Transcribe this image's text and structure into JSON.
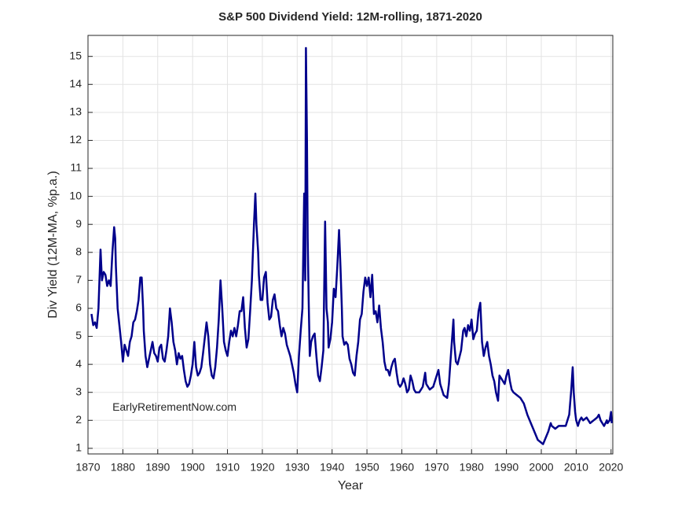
{
  "chart_data": {
    "type": "line",
    "title": "S&P 500 Dividend Yield: 12M-rolling, 1871-2020",
    "x_label": "Year",
    "y_label": "Div Yield (12M-MA, %p.a.)",
    "annotation": "EarlyRetirementNow.com",
    "color": "#00008b",
    "grid": true,
    "xlim": [
      1870,
      2020.5
    ],
    "ylim": [
      0.8,
      15.75
    ],
    "xticks": [
      1870,
      1880,
      1890,
      1900,
      1910,
      1920,
      1930,
      1940,
      1950,
      1960,
      1970,
      1980,
      1990,
      2000,
      2010,
      2020
    ],
    "yticks": [
      1,
      2,
      3,
      4,
      5,
      6,
      7,
      8,
      9,
      10,
      11,
      12,
      13,
      14,
      15
    ],
    "x": [
      1871,
      1871.5,
      1872,
      1872.5,
      1873,
      1873.6,
      1874,
      1874.5,
      1875,
      1875.5,
      1876,
      1876.5,
      1877,
      1877.5,
      1877.8,
      1878,
      1878.5,
      1879,
      1879.5,
      1880,
      1880.5,
      1881,
      1881.5,
      1882,
      1882.5,
      1883,
      1883.5,
      1884,
      1884.5,
      1885,
      1885.4,
      1885.8,
      1886,
      1886.5,
      1887,
      1887.5,
      1888,
      1888.5,
      1889,
      1889.5,
      1890,
      1890.5,
      1891,
      1891.5,
      1892,
      1892.5,
      1893,
      1893.5,
      1894,
      1894.5,
      1895,
      1895.5,
      1896,
      1896.5,
      1897,
      1897.5,
      1898,
      1898.5,
      1899,
      1899.5,
      1900,
      1900.5,
      1901,
      1901.5,
      1902,
      1902.5,
      1903,
      1904,
      1904.5,
      1905,
      1905.5,
      1906,
      1906.5,
      1907,
      1907.5,
      1908,
      1908.5,
      1909,
      1909.5,
      1910,
      1910.5,
      1911,
      1911.5,
      1912,
      1912.5,
      1913,
      1913.5,
      1914,
      1914.5,
      1915,
      1915.5,
      1916,
      1916.5,
      1917,
      1917.6,
      1918,
      1918.3,
      1918.8,
      1919,
      1919.5,
      1920,
      1920.5,
      1921,
      1921.5,
      1922,
      1922.5,
      1923,
      1923.5,
      1924,
      1924.5,
      1925,
      1925.5,
      1926,
      1926.5,
      1927,
      1928,
      1928.5,
      1929,
      1929.5,
      1930,
      1930.5,
      1931,
      1931.5,
      1932,
      1932.3,
      1932.5,
      1932.8,
      1933,
      1933.3,
      1933.6,
      1934,
      1934.5,
      1935,
      1935.5,
      1936,
      1936.5,
      1937,
      1937.5,
      1938,
      1938.4,
      1938.8,
      1939,
      1939.5,
      1940,
      1940.5,
      1941,
      1941.5,
      1942,
      1942.4,
      1942.8,
      1943,
      1943.5,
      1944,
      1944.5,
      1945,
      1945.5,
      1946,
      1946.5,
      1947,
      1947.5,
      1948,
      1948.5,
      1949,
      1949.5,
      1950,
      1950.5,
      1951,
      1951.5,
      1952,
      1952.5,
      1953,
      1953.5,
      1954,
      1954.5,
      1955,
      1955.5,
      1956,
      1956.5,
      1957,
      1957.5,
      1958,
      1958.5,
      1959,
      1959.5,
      1960,
      1960.5,
      1961,
      1961.5,
      1962,
      1962.5,
      1963,
      1963.5,
      1964,
      1965,
      1966,
      1966.7,
      1967,
      1968,
      1969,
      1970,
      1970.5,
      1971,
      1972,
      1973,
      1973.5,
      1974,
      1974.8,
      1975,
      1975.5,
      1976,
      1977,
      1977.6,
      1978,
      1978.5,
      1979,
      1979.5,
      1980,
      1980.5,
      1981,
      1981.5,
      1982,
      1982.5,
      1983,
      1983.5,
      1984,
      1984.5,
      1985,
      1985.5,
      1986,
      1986.5,
      1987,
      1987.6,
      1988,
      1988.5,
      1989,
      1989.5,
      1990,
      1990.5,
      1991,
      1991.5,
      1992,
      1993,
      1994,
      1995,
      1996,
      1997,
      1998,
      1999,
      2000,
      2000.5,
      2001,
      2002,
      2002.7,
      2003,
      2004,
      2005,
      2006,
      2007,
      2008,
      2008.6,
      2009,
      2009.3,
      2009.7,
      2010,
      2010.5,
      2011,
      2011.5,
      2012,
      2013,
      2014,
      2015,
      2016,
      2016.5,
      2017,
      2018,
      2018.8,
      2019,
      2019.6,
      2020,
      2020.2
    ],
    "values": [
      5.8,
      5.4,
      5.5,
      5.3,
      6.0,
      8.1,
      7.0,
      7.3,
      7.2,
      6.8,
      7.0,
      6.8,
      8.0,
      8.9,
      8.5,
      7.5,
      6.0,
      5.4,
      4.8,
      4.1,
      4.7,
      4.5,
      4.3,
      4.8,
      5.0,
      5.5,
      5.6,
      5.9,
      6.3,
      7.1,
      7.1,
      6.0,
      5.2,
      4.3,
      3.9,
      4.2,
      4.5,
      4.8,
      4.4,
      4.3,
      4.1,
      4.6,
      4.7,
      4.2,
      4.1,
      4.5,
      5.0,
      6.0,
      5.5,
      4.8,
      4.5,
      4.0,
      4.4,
      4.2,
      4.3,
      3.8,
      3.4,
      3.2,
      3.3,
      3.6,
      4.0,
      4.8,
      3.9,
      3.6,
      3.7,
      3.9,
      4.4,
      5.5,
      5.0,
      4.0,
      3.6,
      3.5,
      3.9,
      4.6,
      5.6,
      7.0,
      6.0,
      4.8,
      4.5,
      4.3,
      4.8,
      5.2,
      5.0,
      5.3,
      5.0,
      5.4,
      5.9,
      5.9,
      6.4,
      5.3,
      4.6,
      4.9,
      5.9,
      7.0,
      9.0,
      10.1,
      9.0,
      8.0,
      7.2,
      6.3,
      6.3,
      7.1,
      7.3,
      6.2,
      5.6,
      5.7,
      6.3,
      6.5,
      6.0,
      5.9,
      5.4,
      5.0,
      5.3,
      5.1,
      4.7,
      4.3,
      4.0,
      3.7,
      3.3,
      3.0,
      4.3,
      5.2,
      6.0,
      10.1,
      7.0,
      15.3,
      12.0,
      8.5,
      6.2,
      4.3,
      4.8,
      5.0,
      5.1,
      4.3,
      3.6,
      3.4,
      3.9,
      4.5,
      9.1,
      6.0,
      5.5,
      4.6,
      4.9,
      5.5,
      6.7,
      6.4,
      7.5,
      8.8,
      7.5,
      6.0,
      5.0,
      4.7,
      4.8,
      4.7,
      4.2,
      4.0,
      3.7,
      3.6,
      4.3,
      4.8,
      5.6,
      5.8,
      6.6,
      7.1,
      6.8,
      7.1,
      6.4,
      7.2,
      5.8,
      5.9,
      5.5,
      6.1,
      5.3,
      4.8,
      4.1,
      3.8,
      3.8,
      3.6,
      3.9,
      4.1,
      4.2,
      3.7,
      3.3,
      3.2,
      3.3,
      3.5,
      3.3,
      3.0,
      3.1,
      3.6,
      3.4,
      3.1,
      3.0,
      3.0,
      3.2,
      3.7,
      3.3,
      3.1,
      3.2,
      3.6,
      3.8,
      3.3,
      2.9,
      2.8,
      3.3,
      4.2,
      5.6,
      4.8,
      4.1,
      4.0,
      4.5,
      5.2,
      5.3,
      5.0,
      5.4,
      5.2,
      5.6,
      4.9,
      5.1,
      5.2,
      5.9,
      6.2,
      4.8,
      4.3,
      4.6,
      4.8,
      4.3,
      4.0,
      3.6,
      3.4,
      3.0,
      2.7,
      3.6,
      3.5,
      3.4,
      3.3,
      3.6,
      3.8,
      3.4,
      3.1,
      3.0,
      2.9,
      2.8,
      2.6,
      2.2,
      1.9,
      1.6,
      1.3,
      1.2,
      1.15,
      1.3,
      1.6,
      1.9,
      1.8,
      1.7,
      1.8,
      1.8,
      1.8,
      2.2,
      3.1,
      3.9,
      3.0,
      2.3,
      2.0,
      1.8,
      2.0,
      2.1,
      2.0,
      2.1,
      1.9,
      2.0,
      2.1,
      2.2,
      2.0,
      1.8,
      2.0,
      1.9,
      2.0,
      2.3,
      1.9
    ]
  }
}
